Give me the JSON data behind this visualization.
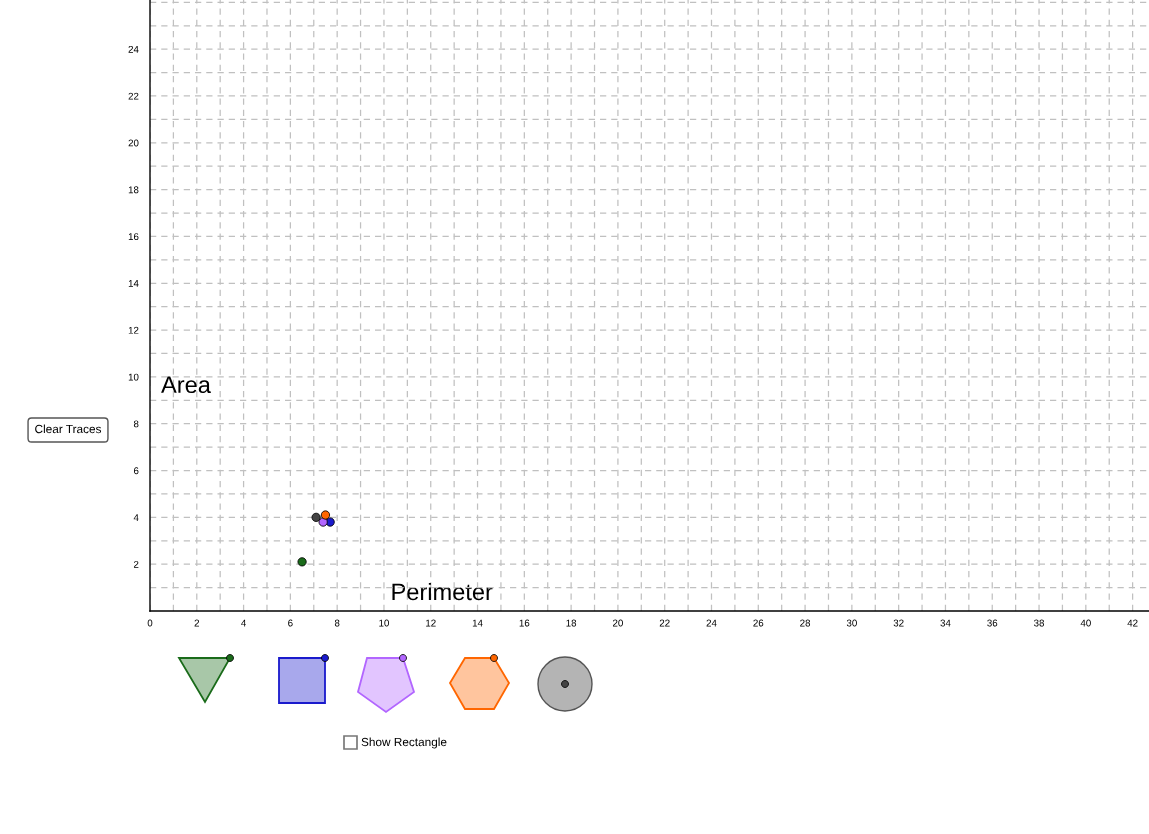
{
  "chart_data": {
    "type": "scatter",
    "x": [
      6.5,
      7.7,
      7.4,
      7.5,
      7.1
    ],
    "values": [
      2.1,
      3.8,
      3.8,
      4.1,
      4.0
    ],
    "colors": [
      "#1a6b1a",
      "#1a1acc",
      "#b266ff",
      "#ff6600",
      "#444444"
    ],
    "marker": "circle",
    "xlabel": "Perimeter",
    "ylabel": "Area",
    "xlim": [
      0,
      42.7
    ],
    "ylim": [
      0,
      26.1
    ],
    "xticks": [
      0,
      {
        "value": 1,
        "label": null
      },
      2,
      {
        "value": 3,
        "label": null
      },
      4,
      {
        "value": 5,
        "label": null
      },
      6,
      {
        "value": 7,
        "label": null
      },
      8,
      {
        "value": 9,
        "label": null
      },
      10,
      {
        "value": 11,
        "label": null
      },
      12,
      {
        "value": 13,
        "label": null
      },
      14,
      {
        "value": 15,
        "label": null
      },
      16,
      {
        "value": 17,
        "label": null
      },
      18,
      {
        "value": 19,
        "label": null
      },
      20,
      {
        "value": 21,
        "label": null
      },
      22,
      {
        "value": 23,
        "label": null
      },
      24,
      {
        "value": 25,
        "label": null
      },
      26,
      {
        "value": 27,
        "label": null
      },
      28,
      {
        "value": 29,
        "label": null
      },
      30,
      {
        "value": 31,
        "label": null
      },
      32,
      {
        "value": 33,
        "label": null
      },
      34,
      {
        "value": 35,
        "label": null
      },
      36,
      {
        "value": 37,
        "label": null
      },
      38,
      {
        "value": 39,
        "label": null
      },
      40,
      {
        "value": 41,
        "label": null
      },
      42
    ],
    "yticks": [
      {
        "value": 1,
        "label": null
      },
      2,
      {
        "value": 3,
        "label": null
      },
      4,
      {
        "value": 5,
        "label": null
      },
      6,
      {
        "value": 7,
        "label": null
      },
      8,
      {
        "value": 9,
        "label": null
      },
      10,
      {
        "value": 11,
        "label": null
      },
      12,
      {
        "value": 13,
        "label": null
      },
      14,
      {
        "value": 15,
        "label": null
      },
      16,
      {
        "value": 17,
        "label": null
      },
      18,
      {
        "value": 19,
        "label": null
      },
      20,
      {
        "value": 21,
        "label": null
      },
      22,
      {
        "value": 23,
        "label": null
      },
      24,
      {
        "value": 25,
        "label": null
      },
      {
        "value": 26,
        "label": null
      }
    ],
    "grid": true,
    "annotations": [
      "Clear Traces",
      "Show Rectangle"
    ]
  }
}
